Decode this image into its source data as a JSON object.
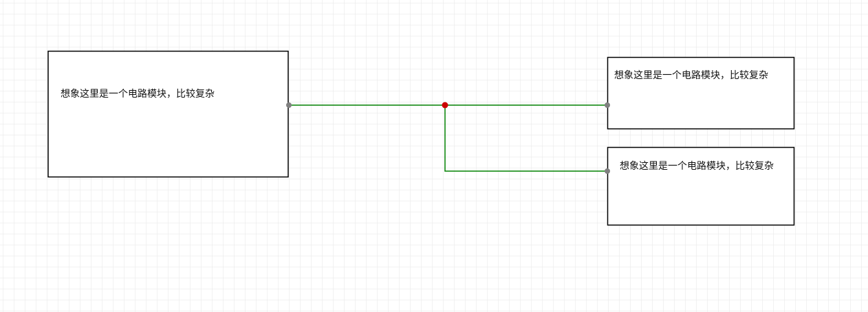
{
  "canvas": {
    "grid_color": "#e6e6e6"
  },
  "colors": {
    "module_border": "#000000",
    "wire": "#008000",
    "junction": "#cc0000",
    "port": "#808080"
  },
  "modules": [
    {
      "id": "module-left",
      "label": "想象这里是一个电路模块，比较复杂"
    },
    {
      "id": "module-top-right",
      "label": "想象这里是一个电路模块，比较复杂"
    },
    {
      "id": "module-bottom-right",
      "label": "想象这里是一个电路模块，比较复杂"
    }
  ]
}
